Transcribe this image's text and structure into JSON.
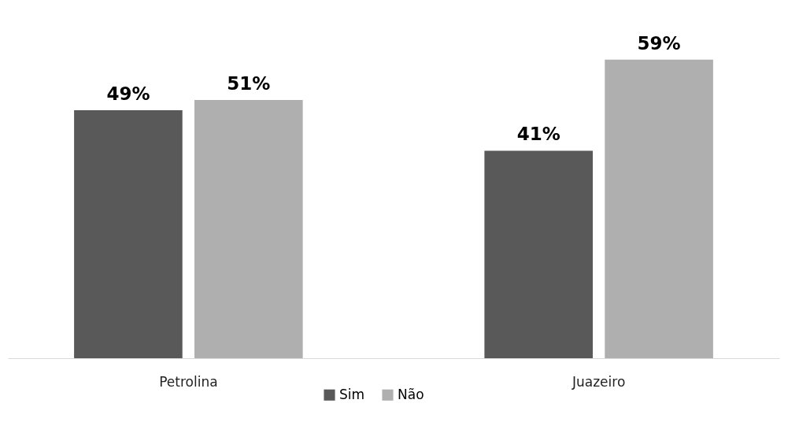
{
  "chart_data": {
    "type": "bar",
    "categories": [
      "Petrolina",
      "Juazeiro"
    ],
    "series": [
      {
        "name": "Sim",
        "color": "#595959",
        "values": [
          49,
          41
        ],
        "value_labels": [
          "49%",
          "41%"
        ]
      },
      {
        "name": "Não",
        "color": "#afafaf",
        "values": [
          51,
          59
        ],
        "value_labels": [
          "51%",
          "59%"
        ]
      }
    ],
    "legend": "bottom"
  }
}
